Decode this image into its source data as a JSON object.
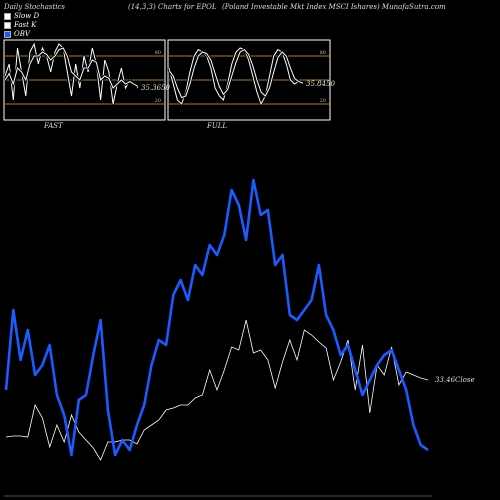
{
  "header": {
    "left": "Daily Stochastics",
    "mid": "(14,3,3) Charts for EPOL",
    "right": "(Poland Investable Mkt Index MSCI Ishares) MunafaSutra.com"
  },
  "legend": [
    {
      "label": "Slow D",
      "color": "#ffffff"
    },
    {
      "label": "Fast K",
      "color": "#ffffff"
    },
    {
      "label": "OBV",
      "color": "#1a5cff"
    }
  ],
  "colors": {
    "background": "#000000",
    "obv": "#1a5cff",
    "price": "#ffffff",
    "level_line": "#b07818"
  },
  "chart_data": [
    {
      "type": "line",
      "title": "FAST",
      "levels": [
        80,
        50,
        20
      ],
      "ylim": [
        0,
        100
      ],
      "value_label": "35.36",
      "value_suffix": "50",
      "series": [
        {
          "name": "Fast K",
          "values": [
            55,
            70,
            25,
            90,
            60,
            30,
            85,
            95,
            70,
            90,
            80,
            60,
            85,
            95,
            90,
            60,
            30,
            70,
            40,
            80,
            60,
            90,
            70,
            25,
            75,
            60,
            20,
            45,
            65,
            40,
            50,
            45,
            40
          ]
        },
        {
          "name": "Slow D",
          "values": [
            50,
            58,
            45,
            65,
            60,
            50,
            70,
            80,
            80,
            85,
            82,
            75,
            80,
            88,
            90,
            80,
            60,
            55,
            50,
            65,
            65,
            75,
            72,
            50,
            55,
            52,
            40,
            45,
            50,
            45,
            48,
            45,
            42
          ]
        }
      ]
    },
    {
      "type": "line",
      "title": "FULL",
      "levels": [
        80,
        50,
        20
      ],
      "ylim": [
        0,
        100
      ],
      "value_label": "35.84",
      "value_suffix": "50",
      "series": [
        {
          "name": "Full K",
          "values": [
            65,
            45,
            25,
            20,
            35,
            60,
            80,
            88,
            85,
            80,
            65,
            40,
            30,
            25,
            45,
            70,
            85,
            90,
            88,
            75,
            55,
            35,
            20,
            30,
            55,
            80,
            88,
            85,
            70,
            50,
            45,
            48,
            45
          ]
        },
        {
          "name": "Full D",
          "values": [
            62,
            55,
            40,
            28,
            30,
            45,
            65,
            80,
            85,
            83,
            75,
            58,
            42,
            32,
            38,
            55,
            72,
            85,
            88,
            82,
            68,
            50,
            35,
            30,
            40,
            60,
            78,
            85,
            80,
            65,
            52,
            48,
            46
          ]
        }
      ]
    },
    {
      "type": "line",
      "title": "",
      "value_label": "33.46",
      "value_suffix": "Close",
      "series": [
        {
          "name": "OBV",
          "values": [
            390,
            310,
            360,
            330,
            375,
            365,
            345,
            395,
            415,
            455,
            400,
            395,
            355,
            320,
            410,
            455,
            440,
            450,
            425,
            405,
            365,
            340,
            345,
            295,
            280,
            300,
            265,
            275,
            245,
            255,
            235,
            190,
            205,
            240,
            180,
            215,
            210,
            265,
            255,
            315,
            320,
            310,
            300,
            265,
            315,
            330,
            355,
            345,
            370,
            395,
            380,
            365,
            355,
            350,
            370,
            390,
            425,
            445,
            450
          ]
        },
        {
          "name": "Close",
          "values": [
            437,
            436,
            436,
            437,
            405,
            418,
            447,
            425,
            442,
            415,
            432,
            440,
            448,
            460,
            442,
            442,
            440,
            440,
            444,
            430,
            425,
            420,
            410,
            408,
            405,
            405,
            398,
            395,
            370,
            390,
            370,
            347,
            350,
            320,
            353,
            350,
            360,
            388,
            362,
            340,
            360,
            330,
            335,
            342,
            348,
            380,
            362,
            340,
            390,
            345,
            413,
            365,
            375,
            347,
            385,
            372,
            375,
            378,
            380
          ]
        }
      ]
    }
  ]
}
